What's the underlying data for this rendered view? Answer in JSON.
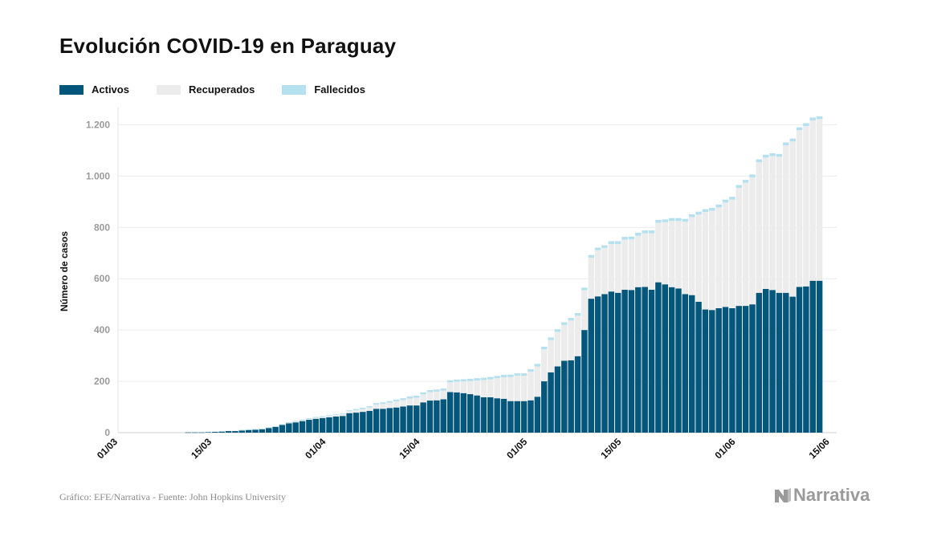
{
  "title": "Evolución COVID-19 en Paraguay",
  "legend": [
    {
      "label": "Activos",
      "color": "#04567b"
    },
    {
      "label": "Recuperados",
      "color": "#ececec"
    },
    {
      "label": "Fallecidos",
      "color": "#b4e0ef"
    }
  ],
  "source": "Gráfico: EFE/Narrativa - Fuente: John Hopkins University",
  "brand": "Narrativa",
  "chart_data": {
    "type": "bar",
    "stacked": true,
    "ylabel": "Número de casos",
    "ylim": [
      0,
      1270
    ],
    "yticks": [
      0,
      200,
      400,
      600,
      800,
      1000,
      1200
    ],
    "ytick_labels": [
      "0",
      "200",
      "400",
      "600",
      "800",
      "1.000",
      "1.200"
    ],
    "xticks": [
      {
        "label": "01/03",
        "index": 0
      },
      {
        "label": "15/03",
        "index": 14
      },
      {
        "label": "01/04",
        "index": 31
      },
      {
        "label": "15/04",
        "index": 45
      },
      {
        "label": "01/05",
        "index": 61
      },
      {
        "label": "15/05",
        "index": 75
      },
      {
        "label": "01/06",
        "index": 92
      },
      {
        "label": "15/06",
        "index": 106
      }
    ],
    "n_slots": 107,
    "start_index": 10,
    "grid": true,
    "legend_position": "top-left",
    "series": [
      {
        "name": "Activos",
        "color": "#04567b",
        "values": [
          1,
          1,
          1,
          2,
          3,
          4,
          6,
          6,
          8,
          10,
          11,
          13,
          18,
          22,
          30,
          37,
          40,
          45,
          50,
          54,
          57,
          60,
          63,
          65,
          76,
          78,
          81,
          85,
          93,
          93,
          96,
          98,
          102,
          106,
          106,
          118,
          125,
          126,
          130,
          158,
          157,
          154,
          150,
          145,
          138,
          138,
          134,
          132,
          123,
          123,
          123,
          126,
          140,
          200,
          235,
          258,
          280,
          282,
          298,
          400,
          522,
          531,
          540,
          550,
          545,
          557,
          556,
          567,
          568,
          557,
          586,
          578,
          567,
          562,
          540,
          536,
          510,
          480,
          478,
          485,
          490,
          485,
          494,
          494,
          500,
          545,
          560,
          556,
          545,
          545,
          530,
          568,
          570,
          592,
          592
        ]
      },
      {
        "name": "Recuperados",
        "color": "#ececec",
        "values": [
          0,
          0,
          0,
          0,
          0,
          0,
          0,
          0,
          0,
          0,
          0,
          0,
          0,
          0,
          0,
          1,
          2,
          3,
          3,
          4,
          4,
          5,
          5,
          6,
          8,
          9,
          11,
          13,
          16,
          19,
          21,
          24,
          25,
          27,
          30,
          31,
          33,
          34,
          34,
          38,
          42,
          46,
          51,
          58,
          67,
          70,
          78,
          84,
          94,
          99,
          99,
          112,
          118,
          125,
          126,
          135,
          140,
          155,
          158,
          155,
          160,
          180,
          180,
          185,
          190,
          195,
          197,
          201,
          209,
          220,
          232,
          242,
          258,
          263,
          282,
          304,
          340,
          380,
          387,
          393,
          407,
          423,
          460,
          480,
          495,
          509,
          512,
          522,
          530,
          575,
          605,
          611,
          625,
          625,
          630
        ]
      },
      {
        "name": "Fallecidos",
        "color": "#b4e0ef",
        "values": [
          0,
          0,
          0,
          0,
          0,
          0,
          0,
          0,
          3,
          3,
          3,
          3,
          3,
          3,
          3,
          3,
          3,
          3,
          3,
          3,
          3,
          3,
          3,
          3,
          3,
          5,
          5,
          5,
          6,
          6,
          6,
          7,
          7,
          8,
          8,
          8,
          8,
          8,
          8,
          8,
          8,
          8,
          9,
          9,
          9,
          9,
          9,
          9,
          9,
          9,
          9,
          9,
          10,
          10,
          10,
          10,
          10,
          10,
          10,
          10,
          10,
          10,
          10,
          11,
          11,
          11,
          11,
          11,
          11,
          11,
          11,
          11,
          11,
          11,
          11,
          11,
          11,
          11,
          11,
          11,
          11,
          11,
          11,
          11,
          11,
          11,
          11,
          11,
          11,
          11,
          11,
          11,
          11,
          11,
          11
        ]
      }
    ]
  }
}
